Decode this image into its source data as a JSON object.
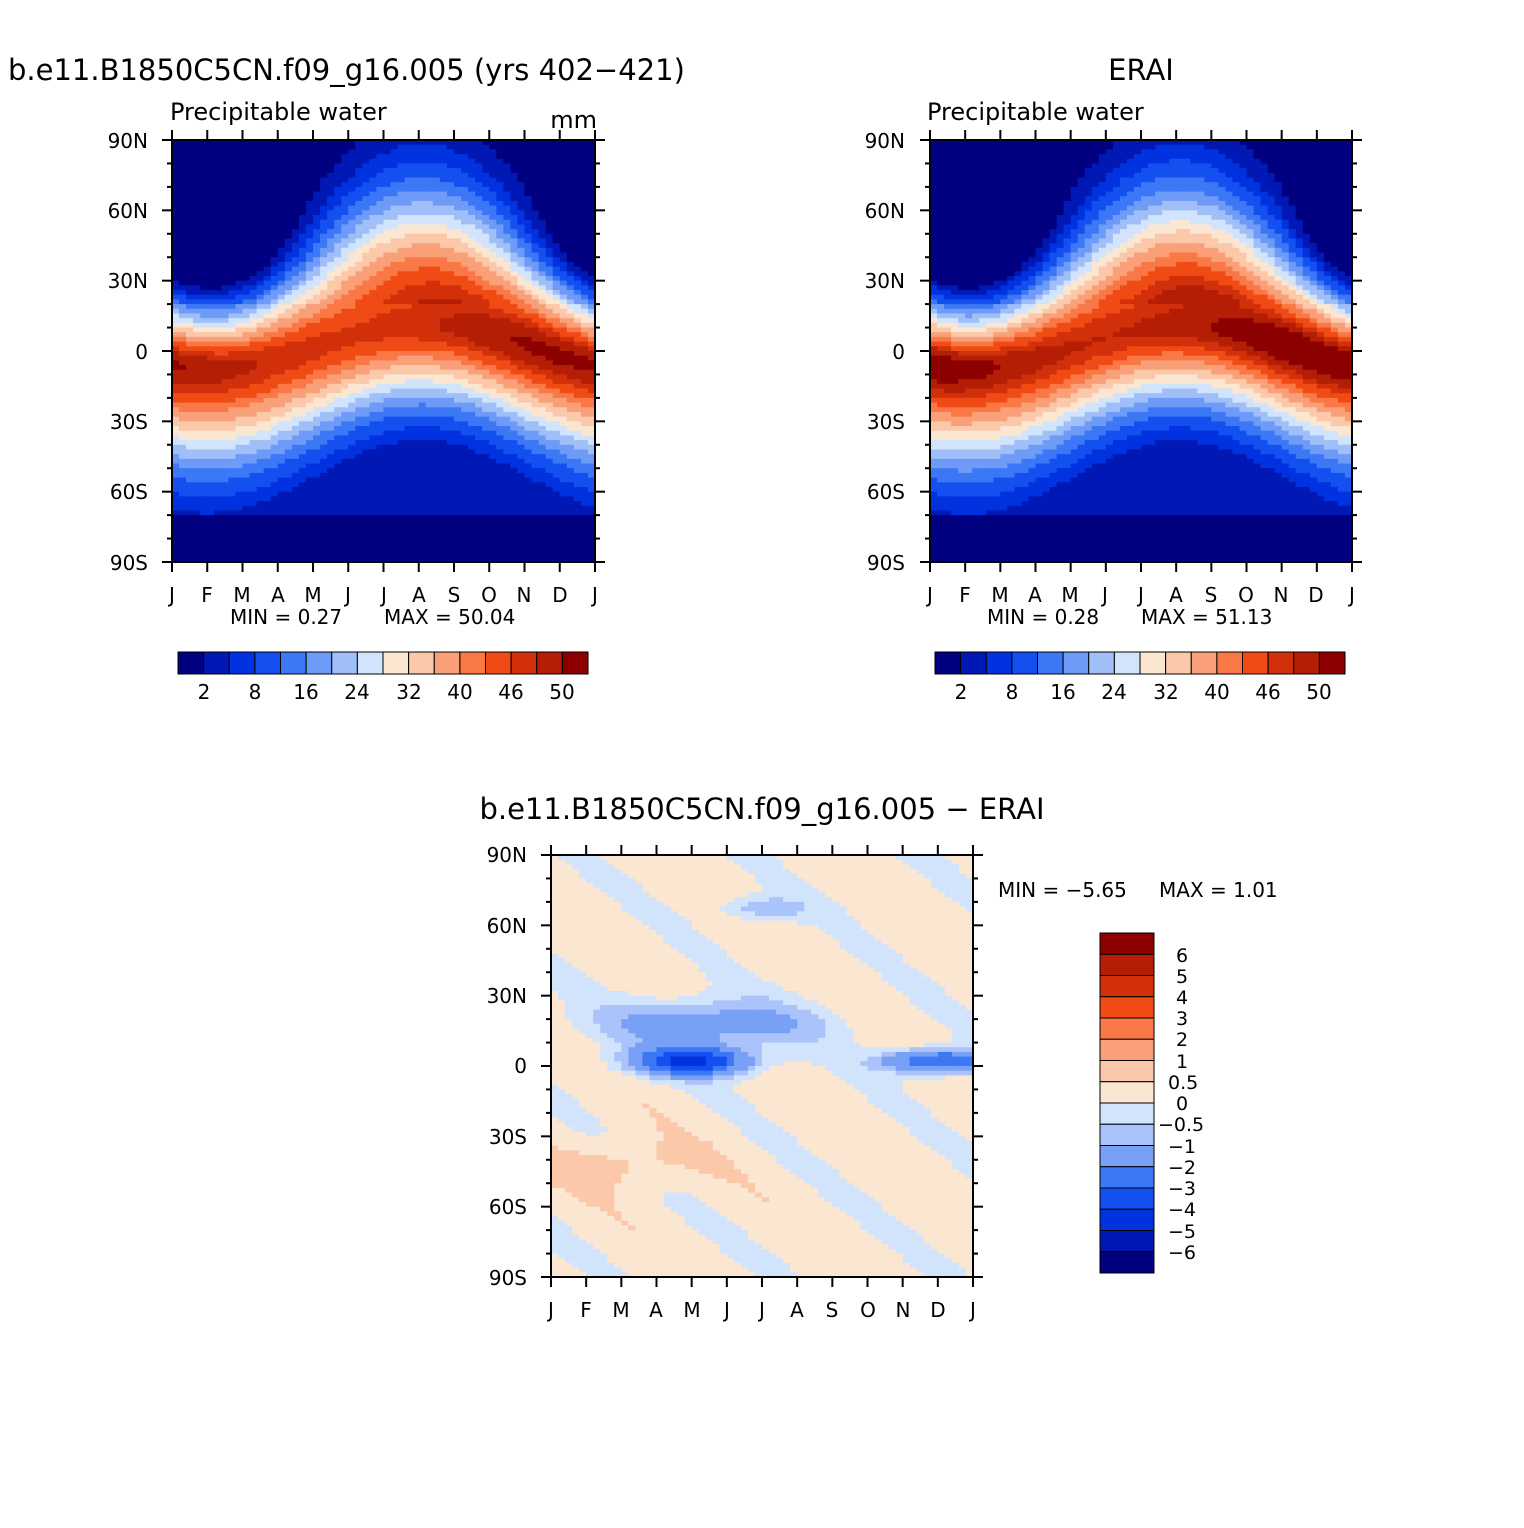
{
  "months": [
    "J",
    "F",
    "M",
    "A",
    "M",
    "J",
    "J",
    "A",
    "S",
    "O",
    "N",
    "D",
    "J"
  ],
  "lat_ticks": [
    "90N",
    "60N",
    "30N",
    "0",
    "30S",
    "60S",
    "90S"
  ],
  "colors": {
    "abs": [
      "#000080",
      "#0019b4",
      "#0032e0",
      "#1450f0",
      "#3c78f5",
      "#6e9bf7",
      "#a0bff9",
      "#d2e4fb",
      "#fbe6d2",
      "#fbc8aa",
      "#f9a078",
      "#f97846",
      "#f04b14",
      "#d2300a",
      "#b41e05",
      "#8c0000"
    ],
    "diff": [
      "#000080",
      "#0019b4",
      "#0032e0",
      "#1450f0",
      "#3c78f5",
      "#78a0f5",
      "#aac3fa",
      "#d2e4fb",
      "#fbe6d2",
      "#fbc8aa",
      "#f9a078",
      "#f97846",
      "#f04b14",
      "#d2300a",
      "#b41e05",
      "#8c0000"
    ]
  },
  "chart_data": [
    {
      "id": "model",
      "type": "heatmap",
      "title": "b.e11.B1850C5CN.f09_g16.005 (yrs 402−421)",
      "subtitle": "Precipitable water",
      "units": "mm",
      "x": [
        "J",
        "F",
        "M",
        "A",
        "M",
        "J",
        "J",
        "A",
        "S",
        "O",
        "N",
        "D",
        "J"
      ],
      "y_range": [
        -90,
        90
      ],
      "min_label": "MIN =   0.27",
      "max_label": "MAX =   50.04",
      "min": 0.27,
      "max": 50.04,
      "colorbar_labels": [
        "2",
        "8",
        "16",
        "24",
        "32",
        "40",
        "46",
        "50"
      ]
    },
    {
      "id": "obs",
      "type": "heatmap",
      "title": "ERAI",
      "subtitle": "Precipitable water",
      "units": "mm",
      "x": [
        "J",
        "F",
        "M",
        "A",
        "M",
        "J",
        "J",
        "A",
        "S",
        "O",
        "N",
        "D",
        "J"
      ],
      "y_range": [
        -90,
        90
      ],
      "min_label": "MIN =   0.28",
      "max_label": "MAX =   51.13",
      "min": 0.28,
      "max": 51.13,
      "colorbar_labels": [
        "2",
        "8",
        "16",
        "24",
        "32",
        "40",
        "46",
        "50"
      ]
    },
    {
      "id": "diff",
      "type": "heatmap",
      "title": "b.e11.B1850C5CN.f09_g16.005 − ERAI",
      "x": [
        "J",
        "F",
        "M",
        "A",
        "M",
        "J",
        "J",
        "A",
        "S",
        "O",
        "N",
        "D",
        "J"
      ],
      "y_range": [
        -90,
        90
      ],
      "min_label": "MIN =   −5.65",
      "max_label": "MAX =     1.01",
      "min": -5.65,
      "max": 1.01,
      "colorbar_labels": [
        "6",
        "5",
        "4",
        "3",
        "2",
        "1",
        "0.5",
        "0",
        "−0.5",
        "−1",
        "−2",
        "−3",
        "−4",
        "−5",
        "−6"
      ]
    }
  ]
}
